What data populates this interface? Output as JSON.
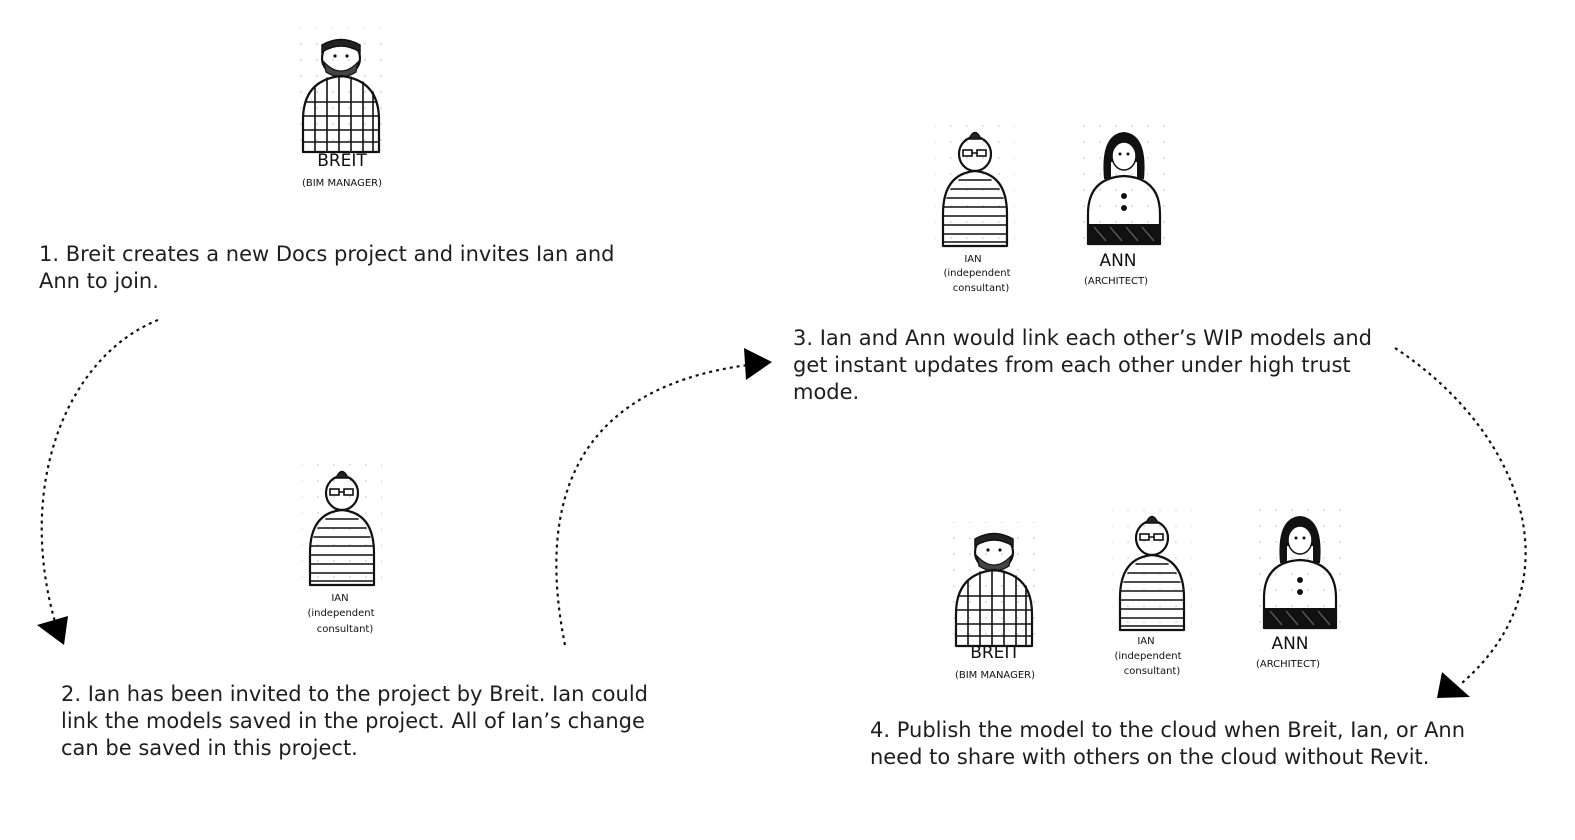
{
  "steps": [
    {
      "number": 1,
      "text": "1. Breit creates a new Docs project and invites Ian and Ann to join."
    },
    {
      "number": 2,
      "text": "2. Ian has been invited to the project by Breit. Ian could link the models saved in the project. All of Ian’s change can be saved in this project."
    },
    {
      "number": 3,
      "text": "3. Ian and Ann would link each other’s WIP models and get instant updates from each other under high trust mode."
    },
    {
      "number": 4,
      "text": "4. Publish the model to the cloud when Breit, Ian, or Ann need to share with others on the cloud without Revit."
    }
  ],
  "characters": {
    "breit": {
      "name": "BREIT",
      "role": "(BIM MANAGER)"
    },
    "ian": {
      "name": "IAN",
      "role_line1": "(independent",
      "role_line2": "consultant)"
    },
    "ann": {
      "name": "ANN",
      "role": "(ARCHITECT)"
    }
  }
}
